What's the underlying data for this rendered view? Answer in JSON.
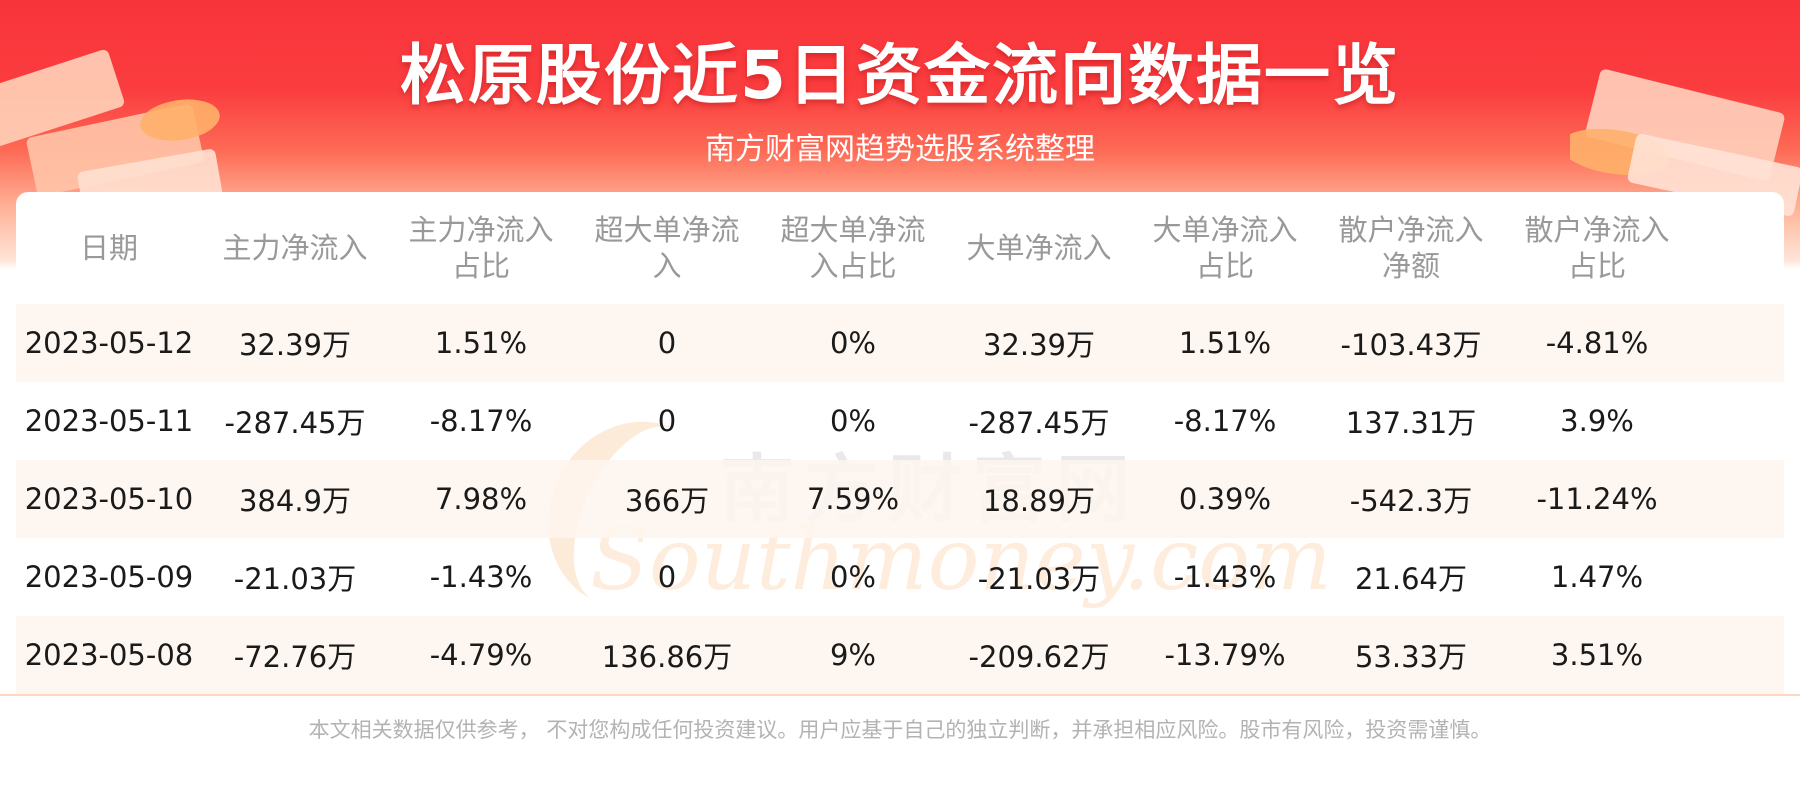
{
  "header": {
    "title": "松原股份近5日资金流向数据一览",
    "subtitle": "南方财富网趋势选股系统整理"
  },
  "watermark": {
    "cn": "南方财富网",
    "en": "Southmoney.com"
  },
  "table": {
    "headers": [
      [
        "日期"
      ],
      [
        "主力净流入"
      ],
      [
        "主力净流入",
        "占比"
      ],
      [
        "超大单净流",
        "入"
      ],
      [
        "超大单净流",
        "入占比"
      ],
      [
        "大单净流入"
      ],
      [
        "大单净流入",
        "占比"
      ],
      [
        "散户净流入",
        "净额"
      ],
      [
        "散户净流入",
        "占比"
      ]
    ],
    "rows": [
      [
        "2023-05-12",
        "32.39万",
        "1.51%",
        "0",
        "0%",
        "32.39万",
        "1.51%",
        "-103.43万",
        "-4.81%"
      ],
      [
        "2023-05-11",
        "-287.45万",
        "-8.17%",
        "0",
        "0%",
        "-287.45万",
        "-8.17%",
        "137.31万",
        "3.9%"
      ],
      [
        "2023-05-10",
        "384.9万",
        "7.98%",
        "366万",
        "7.59%",
        "18.89万",
        "0.39%",
        "-542.3万",
        "-11.24%"
      ],
      [
        "2023-05-09",
        "-21.03万",
        "-1.43%",
        "0",
        "0%",
        "-21.03万",
        "-1.43%",
        "21.64万",
        "1.47%"
      ],
      [
        "2023-05-08",
        "-72.76万",
        "-4.79%",
        "136.86万",
        "9%",
        "-209.62万",
        "-13.79%",
        "53.33万",
        "3.51%"
      ]
    ]
  },
  "footer": {
    "disclaimer": "本文相关数据仅供参考， 不对您构成任何投资建议。用户应基于自己的独立判断，并承担相应风险。股市有风险，投资需谨慎。"
  },
  "colors": {
    "header_red": "#f8343b",
    "header_text": "#ffffff",
    "column_header_text": "#999999",
    "cell_text": "#1a1a1a",
    "row_stripe": "#fef6ee",
    "footer_text": "#b3b3b3"
  }
}
